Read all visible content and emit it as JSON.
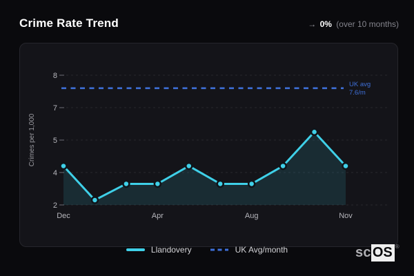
{
  "header": {
    "title": "Crime Rate Trend",
    "trend_arrow": "→",
    "trend_value": "0%",
    "trend_period": "(over 10 months)"
  },
  "chart_data": {
    "type": "area",
    "title": "Crime Rate Trend",
    "ylabel": "Crimes per 1,000",
    "months_count": 10,
    "x_tick_labels": [
      "Dec",
      "Apr",
      "Aug",
      "Nov"
    ],
    "x_tick_indices": [
      0,
      3,
      6,
      9
    ],
    "yticks": [
      2,
      4,
      5,
      7,
      8
    ],
    "series": [
      {
        "name": "Llandovery",
        "values": [
          4.2,
          2.3,
          3.3,
          3.3,
          4.2,
          3.3,
          3.3,
          4.2,
          5.5,
          4.2
        ]
      }
    ],
    "reference_line": {
      "name": "UK Avg/month",
      "value": 7.6,
      "label_line1": "UK avg",
      "label_line2": "7.6/m"
    },
    "grid": true,
    "legend_position": "bottom",
    "colors": {
      "line": "#3fd0e8",
      "marker": "#3fd0e8",
      "marker_border": "#10151a",
      "fill": "rgba(63,208,232,0.13)",
      "reference": "#3e6fd8",
      "grid": "#27272d",
      "tick_text": "#b6b6bc",
      "axis_title": "#9a9aa0"
    }
  },
  "legend": {
    "series_label": "Llandovery",
    "reference_label": "UK Avg/month"
  },
  "footer_logo": {
    "prefix": "sc",
    "suffix": "OS",
    "registered": "®"
  }
}
